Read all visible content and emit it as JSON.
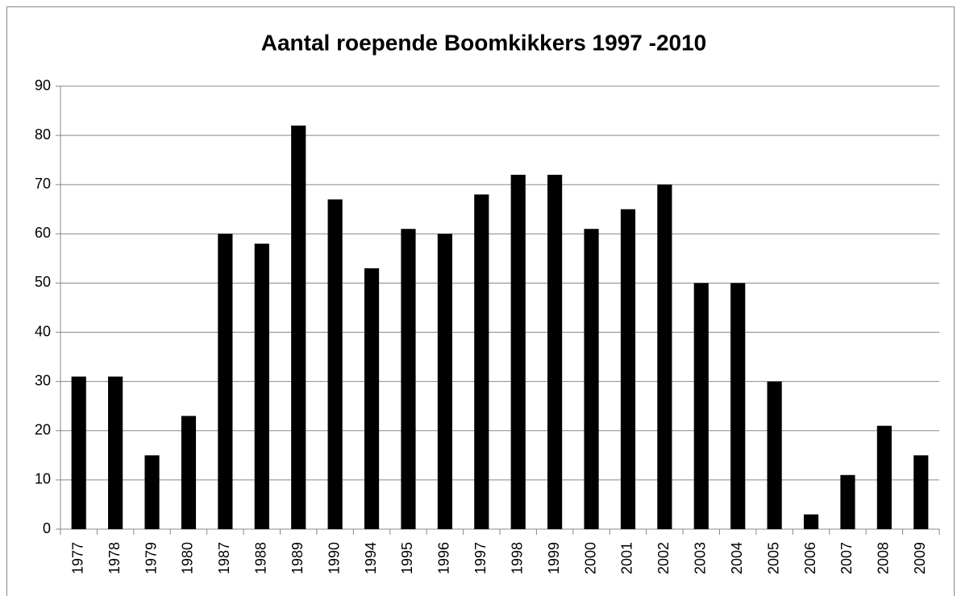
{
  "chart_data": {
    "type": "bar",
    "title": "Aantal roepende Boomkikkers 1997 -2010",
    "categories": [
      "1977",
      "1978",
      "1979",
      "1980",
      "1987",
      "1988",
      "1989",
      "1990",
      "1994",
      "1995",
      "1996",
      "1997",
      "1998",
      "1999",
      "2000",
      "2001",
      "2002",
      "2003",
      "2004",
      "2005",
      "2006",
      "2007",
      "2008",
      "2009"
    ],
    "values": [
      31,
      31,
      15,
      23,
      60,
      58,
      82,
      67,
      53,
      61,
      60,
      68,
      72,
      72,
      61,
      65,
      70,
      50,
      50,
      30,
      3,
      11,
      21,
      15
    ],
    "color": "#000000",
    "ylim": [
      0,
      90
    ],
    "yticks": [
      0,
      10,
      20,
      30,
      40,
      50,
      60,
      70,
      80,
      90
    ],
    "grid": true
  }
}
